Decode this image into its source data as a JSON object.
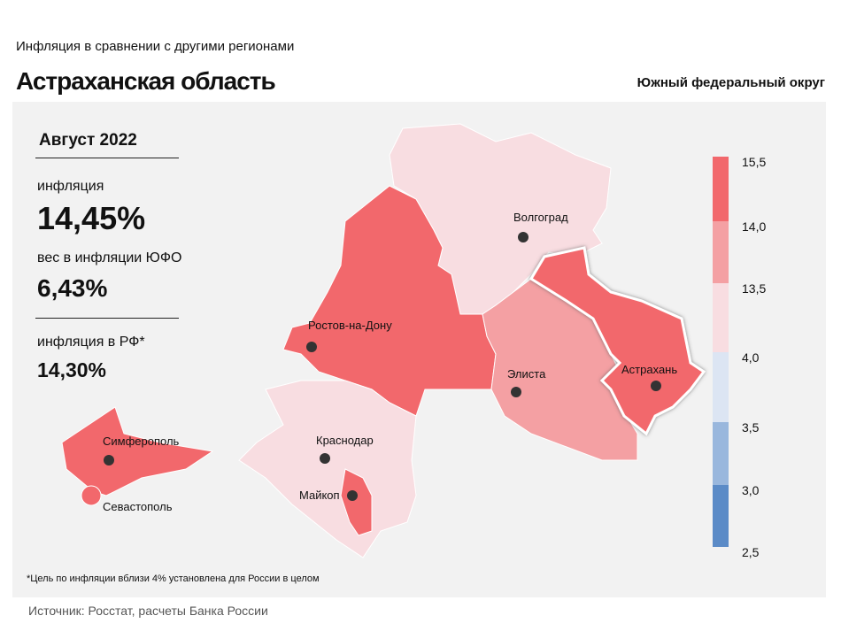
{
  "header": {
    "subtitle": "Инфляция в сравнении с другими регионами",
    "title": "Астраханская область",
    "district": "Южный федеральный округ"
  },
  "stats": {
    "period": "Август 2022",
    "inflation_label": "инфляция",
    "inflation_value": "14,45%",
    "weight_label": "вес в инфляции ЮФО",
    "weight_value": "6,43%",
    "rf_label": "инфляция в РФ*",
    "rf_value": "14,30%"
  },
  "legend": {
    "ticks": [
      "15,5",
      "14,0",
      "13,5",
      "4,0",
      "3,5",
      "3,0",
      "2,5"
    ],
    "colors": [
      "#f2686c",
      "#f4a0a3",
      "#f8dde1",
      "#dce5f3",
      "#99b7dd",
      "#5b8bc7"
    ]
  },
  "map": {
    "cities": [
      "Волгоград",
      "Ростов-на-Дону",
      "Элиста",
      "Астрахань",
      "Краснодар",
      "Майкоп",
      "Симферополь",
      "Севастополь"
    ],
    "highlight": "Астраханская область"
  },
  "footer": {
    "footnote": "*Цель по инфляции вблизи 4% установлена для России в целом",
    "source": "Источник: Росстат, расчеты Банка России"
  }
}
